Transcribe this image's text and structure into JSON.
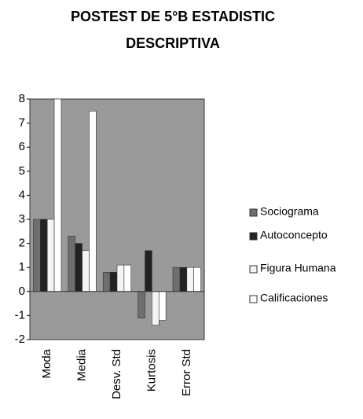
{
  "chart_data": {
    "type": "bar",
    "title": [
      "POSTEST DE 5°B ESTADISTIC",
      "DESCRIPTIVA"
    ],
    "categories": [
      "Moda",
      "Media",
      "Desv. Std",
      "Kurtosis",
      "Error Std"
    ],
    "series": [
      {
        "name": "Sociograma",
        "color": "#6e6e6e",
        "values": [
          3,
          2.3,
          0.8,
          -1.1,
          1
        ]
      },
      {
        "name": "Autoconcepto",
        "color": "#222222",
        "values": [
          3,
          2,
          0.8,
          1.7,
          1
        ]
      },
      {
        "name": "Figura Humana",
        "color": "#f4f4f4",
        "values": [
          3,
          1.7,
          1.1,
          -1.4,
          1
        ]
      },
      {
        "name": "Calificaciones",
        "color": "#ffffff",
        "values": [
          8,
          7.5,
          1.1,
          -1.2,
          1
        ]
      }
    ],
    "ylim": [
      -2,
      8
    ],
    "yticks": [
      -2,
      -1,
      0,
      1,
      2,
      3,
      4,
      5,
      6,
      7,
      8
    ],
    "legend": "right"
  }
}
